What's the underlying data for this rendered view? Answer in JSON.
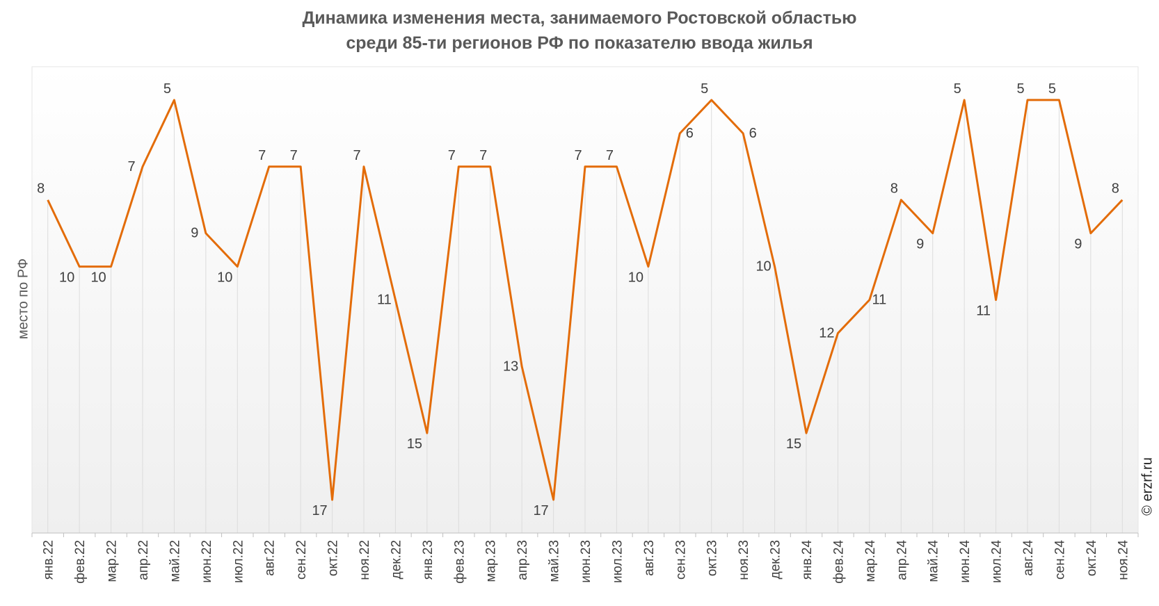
{
  "chart_data": {
    "type": "line",
    "title_line1": "Динамика изменения места, занимаемого Ростовской областью",
    "title_line2": "среди 85-ти регионов РФ по показателю ввода жилья",
    "ylabel": "место по РФ",
    "ylim": [
      4,
      18
    ],
    "y_inverted": true,
    "grid": "vertical",
    "line_color": "#E36C09",
    "credit": "© erzrf.ru",
    "categories": [
      "янв.22",
      "фев.22",
      "мар.22",
      "апр.22",
      "май.22",
      "июн.22",
      "июл.22",
      "авг.22",
      "сен.22",
      "окт.22",
      "ноя.22",
      "дек.22",
      "янв.23",
      "фев.23",
      "мар.23",
      "апр.23",
      "май.23",
      "июн.23",
      "июл.23",
      "авг.23",
      "сен.23",
      "окт.23",
      "ноя.23",
      "дек.23",
      "янв.24",
      "фев.24",
      "мар.24",
      "апр.24",
      "май.24",
      "июн.24",
      "июл.24",
      "авг.24",
      "сен.24",
      "окт.24",
      "ноя.24"
    ],
    "series": [
      {
        "name": "место по РФ",
        "values": [
          8,
          10,
          10,
          7,
          5,
          9,
          10,
          7,
          7,
          17,
          7,
          11,
          15,
          7,
          7,
          13,
          17,
          7,
          7,
          10,
          6,
          5,
          6,
          10,
          15,
          12,
          11,
          8,
          9,
          5,
          11,
          5,
          5,
          9,
          8
        ]
      }
    ]
  }
}
